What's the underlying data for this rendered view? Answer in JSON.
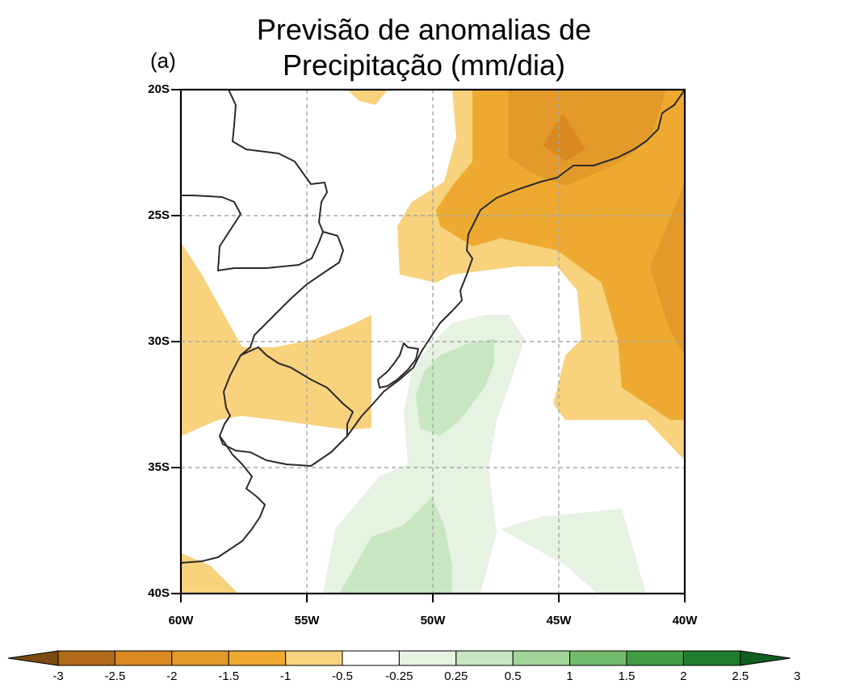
{
  "title": {
    "line1": "Previsão de anomalias de",
    "line2": "Precipitação (mm/dia)"
  },
  "panel_label": "(a)",
  "map": {
    "lat_labels": [
      "20S",
      "25S",
      "30S",
      "35S",
      "40S"
    ],
    "lon_labels": [
      "60W",
      "55W",
      "50W",
      "45W",
      "40W"
    ],
    "lat_range": [
      -40,
      -20
    ],
    "lon_range": [
      -60,
      -40
    ]
  },
  "colorbar": {
    "ticks": [
      "-3",
      "-2.5",
      "-2",
      "-1.5",
      "-1",
      "-0.5",
      "-0.25",
      "0.25",
      "0.5",
      "1",
      "1.5",
      "2",
      "2.5",
      "3"
    ],
    "colors": [
      "#7a4a10",
      "#b06a18",
      "#d9891f",
      "#e39a2a",
      "#eeaa30",
      "#f8d27c",
      "#ffffff",
      "#e6f2e2",
      "#c8e6c2",
      "#a2d49a",
      "#72bb6c",
      "#419c45",
      "#1f7e2e",
      "#0f5e1e"
    ]
  }
}
